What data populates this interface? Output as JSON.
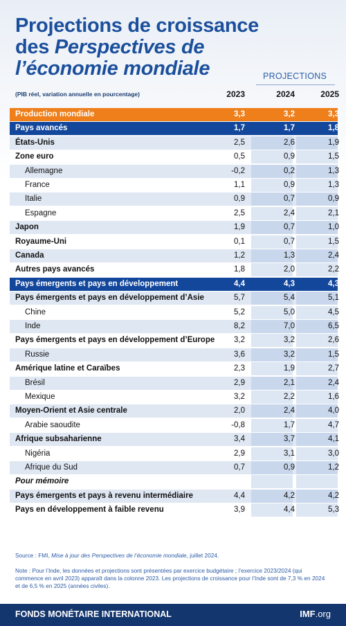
{
  "header": {
    "title_line1": "Projections de croissance",
    "title_line2_prefix": "des ",
    "title_line2_italic": "Perspectives de",
    "title_line3": "l’économie mondiale",
    "projections_label": "PROJECTIONS",
    "unit_note": "(PIB réel, variation annuelle en pourcentage)"
  },
  "table": {
    "columns": [
      "2023",
      "2024",
      "2025"
    ],
    "rows": [
      [
        "Production mondiale",
        "3,3",
        "3,2",
        "3,3"
      ],
      [
        "Pays avancés",
        "1,7",
        "1,7",
        "1,8"
      ],
      [
        "États-Unis",
        "2,5",
        "2,6",
        "1,9"
      ],
      [
        "Zone euro",
        "0,5",
        "0,9",
        "1,5"
      ],
      [
        "Allemagne",
        "-0,2",
        "0,2",
        "1,3"
      ],
      [
        "France",
        "1,1",
        "0,9",
        "1,3"
      ],
      [
        "Italie",
        "0,9",
        "0,7",
        "0,9"
      ],
      [
        "Espagne",
        "2,5",
        "2,4",
        "2,1"
      ],
      [
        "Japon",
        "1,9",
        "0,7",
        "1,0"
      ],
      [
        "Royaume-Uni",
        "0,1",
        "0,7",
        "1,5"
      ],
      [
        "Canada",
        "1,2",
        "1,3",
        "2,4"
      ],
      [
        "Autres pays avancés",
        "1,8",
        "2,0",
        "2,2"
      ],
      [
        "Pays émergents et pays en développement",
        "4,4",
        "4,3",
        "4,3"
      ],
      [
        "Pays émergents et pays en développement d’Asie",
        "5,7",
        "5,4",
        "5,1"
      ],
      [
        "Chine",
        "5,2",
        "5,0",
        "4,5"
      ],
      [
        "Inde",
        "8,2",
        "7,0",
        "6,5"
      ],
      [
        "Pays émergents et pays en développement d’Europe",
        "3,2",
        "3,2",
        "2,6"
      ],
      [
        "Russie",
        "3,6",
        "3,2",
        "1,5"
      ],
      [
        "Amérique latine et Caraïbes",
        "2,3",
        "1,9",
        "2,7"
      ],
      [
        "Brésil",
        "2,9",
        "2,1",
        "2,4"
      ],
      [
        "Mexique",
        "3,2",
        "2,2",
        "1,6"
      ],
      [
        "Moyen-Orient et Asie centrale",
        "2,0",
        "2,4",
        "4,0"
      ],
      [
        "Arabie saoudite",
        "-0,8",
        "1,7",
        "4,7"
      ],
      [
        "Afrique subsaharienne",
        "3,4",
        "3,7",
        "4,1"
      ],
      [
        "Nigéria",
        "2,9",
        "3,1",
        "3,0"
      ],
      [
        "Afrique du Sud",
        "0,7",
        "0,9",
        "1,2"
      ],
      [
        "Pour mémoire"
      ],
      [
        "Pays émergents et pays à revenu intermédiaire",
        "4,4",
        "4,2",
        "4,2"
      ],
      [
        "Pays en développement à faible revenu",
        "3,9",
        "4,4",
        "5,3"
      ]
    ]
  },
  "footer": {
    "source_prefix": "Source : FMI, ",
    "source_italic": "Mise à jour des Perspectives de l’économie mondiale",
    "source_suffix": ", juillet 2024.",
    "note": "Note : Pour l’Inde, les données et projections sont présentées par exercice budgétaire ; l’exercice 2023/2024 (qui commence en avril 2023) apparaît dans la colonne 2023. Les projections de croissance pour l’Inde sont de 7,3 % en 2024 et de 6,5 % en 2025 (années civiles).",
    "organization": "FONDS MONÉTAIRE INTERNATIONAL",
    "site_bold": "IMF",
    "site_suffix": ".org"
  }
}
